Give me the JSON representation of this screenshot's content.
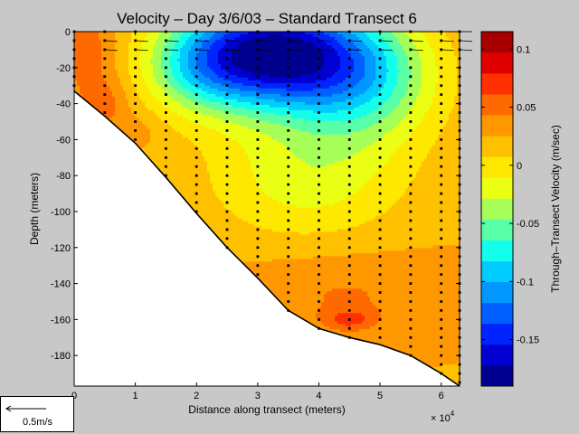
{
  "chart_data": {
    "type": "heatmap",
    "title": "Velocity – Day 3/6/03 – Standard Transect 6",
    "xlabel": "Distance along transect (meters)",
    "ylabel": "Depth (meters)",
    "x_multiplier": "× 10",
    "x_multiplier_exp": "4",
    "xlim": [
      0,
      63000
    ],
    "ylim": [
      -197,
      0
    ],
    "x_ticks": [
      0,
      1,
      2,
      3,
      4,
      5,
      6
    ],
    "y_ticks": [
      0,
      -20,
      -40,
      -60,
      -80,
      -100,
      -120,
      -140,
      -160,
      -180
    ],
    "colorbar": {
      "label": "Through–Transect Velocity (m/sec)",
      "ticks": [
        "0.1",
        "0.05",
        "0",
        "-0.05",
        "-0.1",
        "-0.15"
      ],
      "tick_values": [
        0.1,
        0.05,
        0,
        -0.05,
        -0.1,
        -0.15
      ],
      "range": [
        -0.19,
        0.115
      ],
      "colors": [
        "#00008f",
        "#0000d0",
        "#0024ff",
        "#0060ff",
        "#0098ff",
        "#00ccff",
        "#14ffeb",
        "#58ffa6",
        "#a6ff58",
        "#ebff14",
        "#ffe800",
        "#ffc000",
        "#ff9800",
        "#ff6a00",
        "#ff3000",
        "#e00000",
        "#a80000"
      ]
    },
    "bottom_profile": [
      [
        0,
        -33
      ],
      [
        5000,
        -47
      ],
      [
        10000,
        -62
      ],
      [
        15000,
        -81
      ],
      [
        20000,
        -101
      ],
      [
        25000,
        -120
      ],
      [
        30000,
        -137
      ],
      [
        35000,
        -155
      ],
      [
        40000,
        -165
      ],
      [
        45000,
        -170
      ],
      [
        50000,
        -174
      ],
      [
        55000,
        -180
      ],
      [
        60000,
        -190
      ],
      [
        63000,
        -197
      ]
    ],
    "station_x": [
      0,
      5000,
      10000,
      15000,
      20000,
      25000,
      30000,
      35000,
      40000,
      45000,
      50000,
      55000,
      60000,
      63000
    ],
    "sample_depth_step": 5,
    "velocity_field_notes": "Strong negative core (about -0.19 m/s) centered near x=30000-35000 m at 10-15 m depth; positive (orange, ~0.04 m/s) near surface at x=0 and in a deep band 120-170 m depth for x>28000 m, with a local max (~0.06) near x=45000, depth 160 m."
  },
  "legend_box": {
    "label": "0.5m/s"
  }
}
